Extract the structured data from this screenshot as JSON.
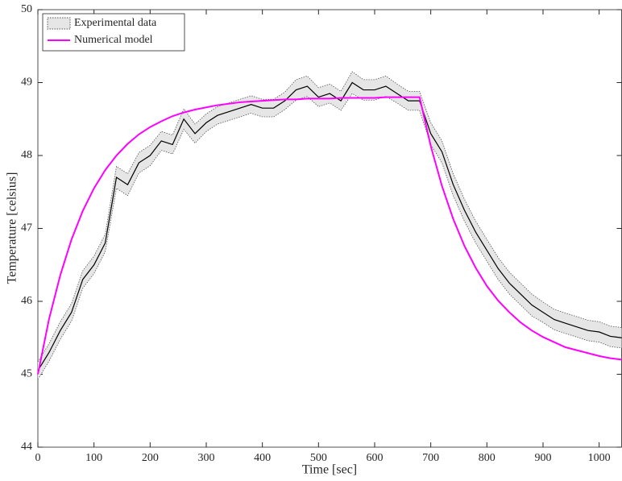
{
  "chart_data": {
    "type": "line",
    "xlabel": "Time [sec]",
    "ylabel": "Temperature [celsius]",
    "xlim": [
      0,
      1040
    ],
    "ylim": [
      44,
      50
    ],
    "xticks": [
      0,
      100,
      200,
      300,
      400,
      500,
      600,
      700,
      800,
      900,
      1000
    ],
    "yticks": [
      44,
      45,
      46,
      47,
      48,
      49,
      50
    ],
    "legend": "upper left",
    "x": [
      0,
      20,
      40,
      60,
      80,
      100,
      120,
      140,
      160,
      180,
      200,
      220,
      240,
      260,
      280,
      300,
      320,
      340,
      360,
      380,
      400,
      420,
      440,
      460,
      480,
      500,
      520,
      540,
      560,
      580,
      600,
      620,
      640,
      660,
      680,
      700,
      720,
      740,
      760,
      780,
      800,
      820,
      840,
      860,
      880,
      900,
      920,
      940,
      960,
      980,
      1000,
      1020,
      1040
    ],
    "series": [
      {
        "name": "Experimental data",
        "color": "#000000",
        "band_color": "#e6e6e6",
        "values": [
          45.05,
          45.3,
          45.6,
          45.85,
          46.3,
          46.5,
          46.8,
          47.7,
          47.6,
          47.9,
          48.0,
          48.2,
          48.15,
          48.5,
          48.3,
          48.45,
          48.55,
          48.6,
          48.65,
          48.7,
          48.65,
          48.65,
          48.75,
          48.9,
          48.95,
          48.8,
          48.85,
          48.75,
          49.0,
          48.9,
          48.9,
          48.95,
          48.85,
          48.75,
          48.75,
          48.3,
          48.05,
          47.6,
          47.25,
          46.95,
          46.7,
          46.45,
          46.25,
          46.1,
          45.95,
          45.85,
          45.75,
          45.7,
          45.65,
          45.6,
          45.58,
          45.52,
          45.5
        ],
        "errors": [
          0.12,
          0.12,
          0.12,
          0.12,
          0.12,
          0.12,
          0.12,
          0.15,
          0.15,
          0.14,
          0.14,
          0.13,
          0.13,
          0.14,
          0.13,
          0.12,
          0.12,
          0.12,
          0.12,
          0.12,
          0.12,
          0.12,
          0.12,
          0.14,
          0.14,
          0.13,
          0.13,
          0.13,
          0.15,
          0.14,
          0.14,
          0.14,
          0.13,
          0.13,
          0.13,
          0.15,
          0.15,
          0.15,
          0.15,
          0.15,
          0.15,
          0.15,
          0.15,
          0.15,
          0.15,
          0.14,
          0.14,
          0.14,
          0.14,
          0.14,
          0.14,
          0.14,
          0.14
        ]
      },
      {
        "name": "Numerical model",
        "color": "#ff00ff",
        "values": [
          45.0,
          45.76,
          46.36,
          46.85,
          47.24,
          47.55,
          47.8,
          48.0,
          48.16,
          48.29,
          48.39,
          48.47,
          48.54,
          48.59,
          48.63,
          48.66,
          48.69,
          48.71,
          48.73,
          48.74,
          48.75,
          48.76,
          48.77,
          48.77,
          48.78,
          48.78,
          48.78,
          48.79,
          48.79,
          48.79,
          48.79,
          48.8,
          48.8,
          48.8,
          48.8,
          48.13,
          47.58,
          47.13,
          46.76,
          46.46,
          46.21,
          46.01,
          45.85,
          45.71,
          45.6,
          45.51,
          45.44,
          45.37,
          45.33,
          45.29,
          45.25,
          45.22,
          45.2
        ]
      }
    ]
  }
}
